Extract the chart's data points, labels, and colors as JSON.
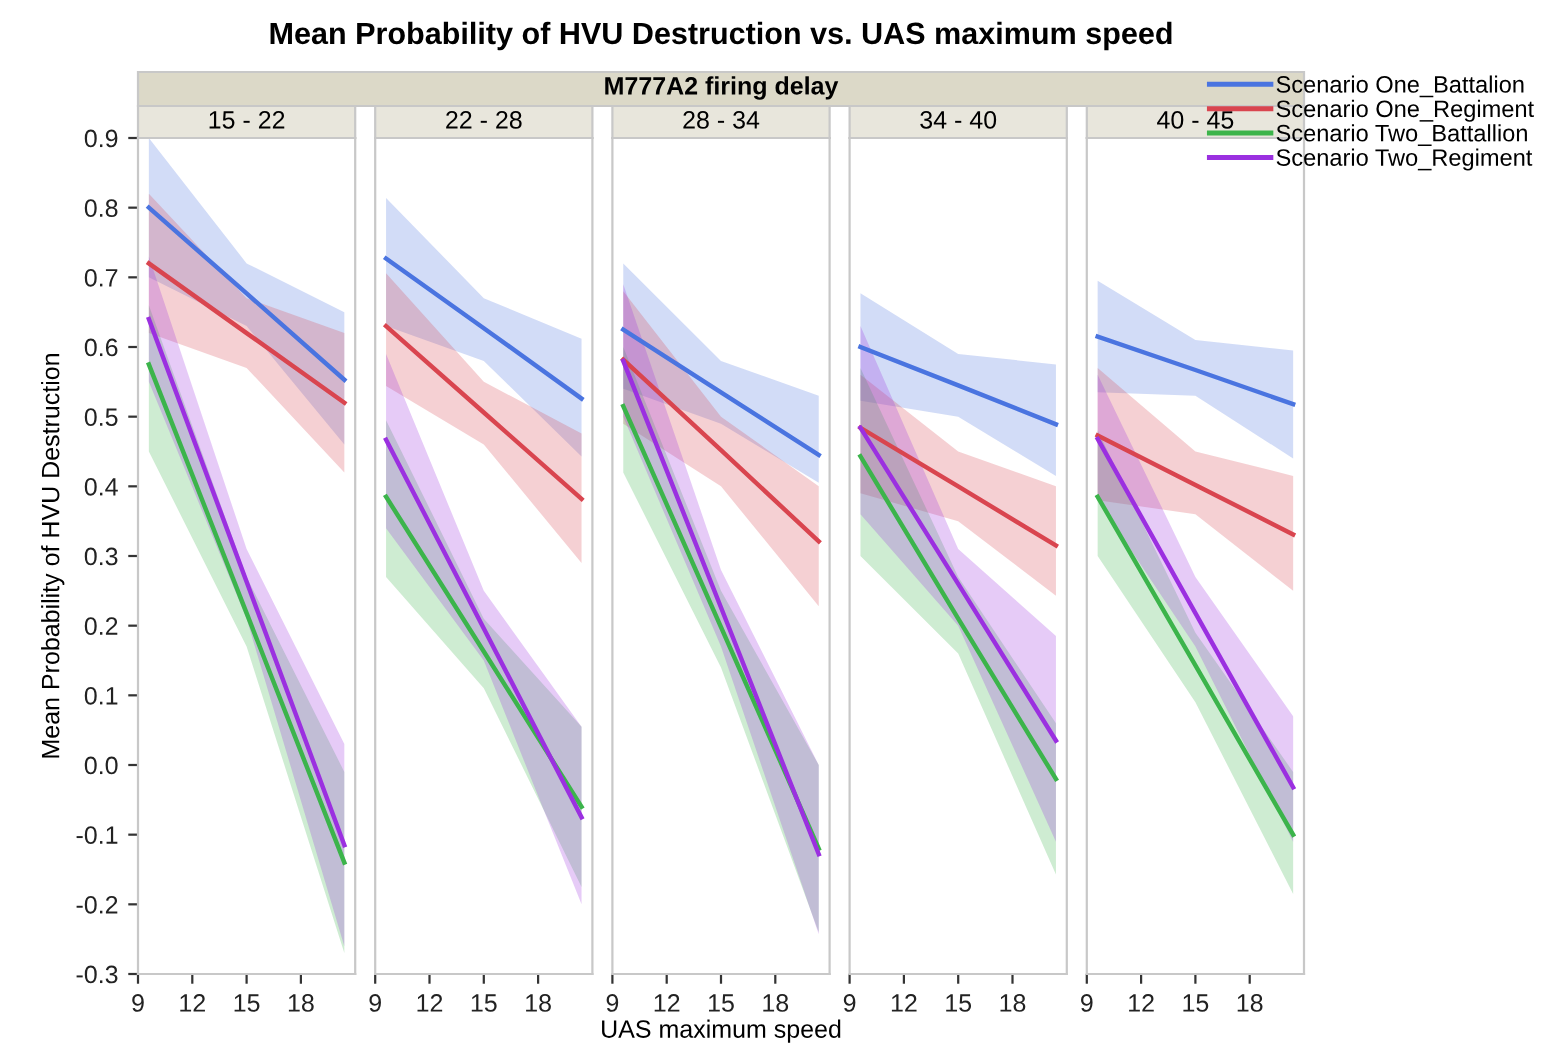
{
  "chart_data": [
    {
      "type": "line",
      "title": "15 - 22",
      "ylabel": "Mean Probability of HVU Destruction",
      "annotations": [
        "Mean Probability of HVU Destruction vs. UAS maximum speed",
        "M777A2 firing delay"
      ],
      "legend": "right",
      "xlim": [
        9,
        21
      ],
      "xticks": [
        9,
        12,
        15,
        18
      ],
      "ylim": [
        -0.3,
        0.9
      ],
      "yticks": [
        {
          "value": -0.3,
          "label": "-0.3"
        },
        {
          "value": -0.2,
          "label": "-0.2"
        },
        {
          "value": -0.1,
          "label": "-0.1"
        },
        {
          "value": 0.0,
          "label": "0.0"
        },
        {
          "value": 0.1,
          "label": "0.1"
        },
        {
          "value": 0.2,
          "label": "0.2"
        },
        {
          "value": 0.3,
          "label": "0.3"
        },
        {
          "value": 0.4,
          "label": "0.4"
        },
        {
          "value": 0.5,
          "label": "0.5"
        },
        {
          "value": 0.6,
          "label": "0.6"
        },
        {
          "value": 0.7,
          "label": "0.7"
        },
        {
          "value": 0.8,
          "label": "0.8"
        },
        {
          "value": 0.9,
          "label": "0.9"
        }
      ],
      "series": [
        {
          "name": "Scenario One_Battalion",
          "color": "#4a74e0",
          "x": [
            9.6,
            15,
            20.4
          ],
          "values": [
            0.8,
            0.677,
            0.553
          ],
          "lower": [
            0.7,
            0.63,
            0.46
          ],
          "upper": [
            0.9,
            0.72,
            0.65
          ]
        },
        {
          "name": "Scenario One_Regiment",
          "color": "#d9454f",
          "x": [
            9.6,
            15,
            20.4
          ],
          "values": [
            0.72,
            0.62,
            0.52
          ],
          "lower": [
            0.62,
            0.57,
            0.42
          ],
          "upper": [
            0.82,
            0.67,
            0.62
          ]
        },
        {
          "name": "Scenario Two_Battallion",
          "color": "#3cb44b",
          "x": [
            9.6,
            15,
            20.4
          ],
          "values": [
            0.575,
            0.218,
            -0.14
          ],
          "lower": [
            0.45,
            0.17,
            -0.27
          ],
          "upper": [
            0.66,
            0.27,
            -0.01
          ]
        },
        {
          "name": "Scenario Two_Regiment",
          "color": "#9b30e0",
          "x": [
            9.6,
            15,
            20.4
          ],
          "values": [
            0.64,
            0.263,
            -0.115
          ],
          "lower": [
            0.55,
            0.21,
            -0.26
          ],
          "upper": [
            0.73,
            0.31,
            0.03
          ]
        }
      ]
    },
    {
      "type": "line",
      "title": "22 - 28",
      "tick_labels": "x",
      "xlim": [
        9,
        21
      ],
      "xticks": [
        9,
        12,
        15,
        18
      ],
      "ylim": [
        -0.3,
        0.9
      ],
      "series": [
        {
          "color": "#4a74e0",
          "x": [
            9.6,
            15,
            20.4
          ],
          "values": [
            0.727,
            0.627,
            0.526
          ],
          "lower": [
            0.63,
            0.58,
            0.443
          ],
          "upper": [
            0.814,
            0.67,
            0.612
          ]
        },
        {
          "color": "#d9454f",
          "x": [
            9.6,
            15,
            20.4
          ],
          "values": [
            0.63,
            0.506,
            0.382
          ],
          "lower": [
            0.544,
            0.46,
            0.29
          ],
          "upper": [
            0.706,
            0.55,
            0.476
          ]
        },
        {
          "color": "#3cb44b",
          "x": [
            9.6,
            15,
            20.4
          ],
          "values": [
            0.385,
            0.163,
            -0.06
          ],
          "lower": [
            0.27,
            0.11,
            -0.175
          ],
          "upper": [
            0.495,
            0.21,
            0.055
          ]
        },
        {
          "color": "#9b30e0",
          "x": [
            9.6,
            15,
            20.4
          ],
          "values": [
            0.467,
            0.196,
            -0.075
          ],
          "lower": [
            0.34,
            0.15,
            -0.2
          ],
          "upper": [
            0.59,
            0.25,
            0.055
          ]
        }
      ]
    },
    {
      "type": "line",
      "title": "28 - 34",
      "xlabel": "UAS maximum speed",
      "tick_labels": "x",
      "xlim": [
        9,
        21
      ],
      "xticks": [
        9,
        12,
        15,
        18
      ],
      "ylim": [
        -0.3,
        0.9
      ],
      "series": [
        {
          "color": "#4a74e0",
          "x": [
            9.6,
            15,
            20.4
          ],
          "values": [
            0.625,
            0.535,
            0.445
          ],
          "lower": [
            0.54,
            0.49,
            0.405
          ],
          "upper": [
            0.72,
            0.58,
            0.53
          ]
        },
        {
          "color": "#d9454f",
          "x": [
            9.6,
            15,
            20.4
          ],
          "values": [
            0.582,
            0.452,
            0.321
          ],
          "lower": [
            0.49,
            0.4,
            0.228
          ],
          "upper": [
            0.68,
            0.5,
            0.4
          ]
        },
        {
          "color": "#3cb44b",
          "x": [
            9.6,
            15,
            20.4
          ],
          "values": [
            0.515,
            0.198,
            -0.12
          ],
          "lower": [
            0.42,
            0.14,
            -0.24
          ],
          "upper": [
            0.6,
            0.25,
            0.0
          ]
        },
        {
          "color": "#9b30e0",
          "x": [
            9.6,
            15,
            20.4
          ],
          "values": [
            0.58,
            0.226,
            -0.128
          ],
          "lower": [
            0.5,
            0.17,
            -0.243
          ],
          "upper": [
            0.69,
            0.28,
            0.0
          ]
        }
      ]
    },
    {
      "type": "line",
      "title": "34 - 40",
      "tick_labels": "x",
      "xlim": [
        9,
        21
      ],
      "xticks": [
        9,
        12,
        15,
        18
      ],
      "ylim": [
        -0.3,
        0.9
      ],
      "series": [
        {
          "color": "#4a74e0",
          "x": [
            9.6,
            15,
            20.4
          ],
          "values": [
            0.6,
            0.545,
            0.489
          ],
          "lower": [
            0.523,
            0.5,
            0.415
          ],
          "upper": [
            0.677,
            0.59,
            0.575
          ]
        },
        {
          "color": "#d9454f",
          "x": [
            9.6,
            15,
            20.4
          ],
          "values": [
            0.484,
            0.4,
            0.315
          ],
          "lower": [
            0.39,
            0.35,
            0.243
          ],
          "upper": [
            0.56,
            0.45,
            0.4
          ]
        },
        {
          "color": "#3cb44b",
          "x": [
            9.6,
            15,
            20.4
          ],
          "values": [
            0.443,
            0.21,
            -0.02
          ],
          "lower": [
            0.3,
            0.16,
            -0.157
          ],
          "upper": [
            0.57,
            0.27,
            0.06
          ]
        },
        {
          "color": "#9b30e0",
          "x": [
            9.6,
            15,
            20.4
          ],
          "values": [
            0.484,
            0.26,
            0.035
          ],
          "lower": [
            0.36,
            0.2,
            -0.11
          ],
          "upper": [
            0.63,
            0.31,
            0.185
          ]
        }
      ]
    },
    {
      "type": "line",
      "title": "40 - 45",
      "tick_labels": "x",
      "xlim": [
        9,
        21
      ],
      "xticks": [
        9,
        12,
        15,
        18
      ],
      "ylim": [
        -0.3,
        0.9
      ],
      "series": [
        {
          "color": "#4a74e0",
          "x": [
            9.6,
            15,
            20.4
          ],
          "values": [
            0.615,
            0.567,
            0.518
          ],
          "lower": [
            0.535,
            0.53,
            0.44
          ],
          "upper": [
            0.695,
            0.61,
            0.595
          ]
        },
        {
          "color": "#d9454f",
          "x": [
            9.6,
            15,
            20.4
          ],
          "values": [
            0.473,
            0.402,
            0.331
          ],
          "lower": [
            0.38,
            0.36,
            0.25
          ],
          "upper": [
            0.57,
            0.45,
            0.415
          ]
        },
        {
          "color": "#3cb44b",
          "x": [
            9.6,
            15,
            20.4
          ],
          "values": [
            0.385,
            0.143,
            -0.1
          ],
          "lower": [
            0.3,
            0.09,
            -0.185
          ],
          "upper": [
            0.48,
            0.19,
            -0.01
          ]
        },
        {
          "color": "#9b30e0",
          "x": [
            9.6,
            15,
            20.4
          ],
          "values": [
            0.468,
            0.218,
            -0.032
          ],
          "lower": [
            0.38,
            0.17,
            -0.11
          ],
          "upper": [
            0.56,
            0.27,
            0.07
          ]
        }
      ]
    }
  ]
}
